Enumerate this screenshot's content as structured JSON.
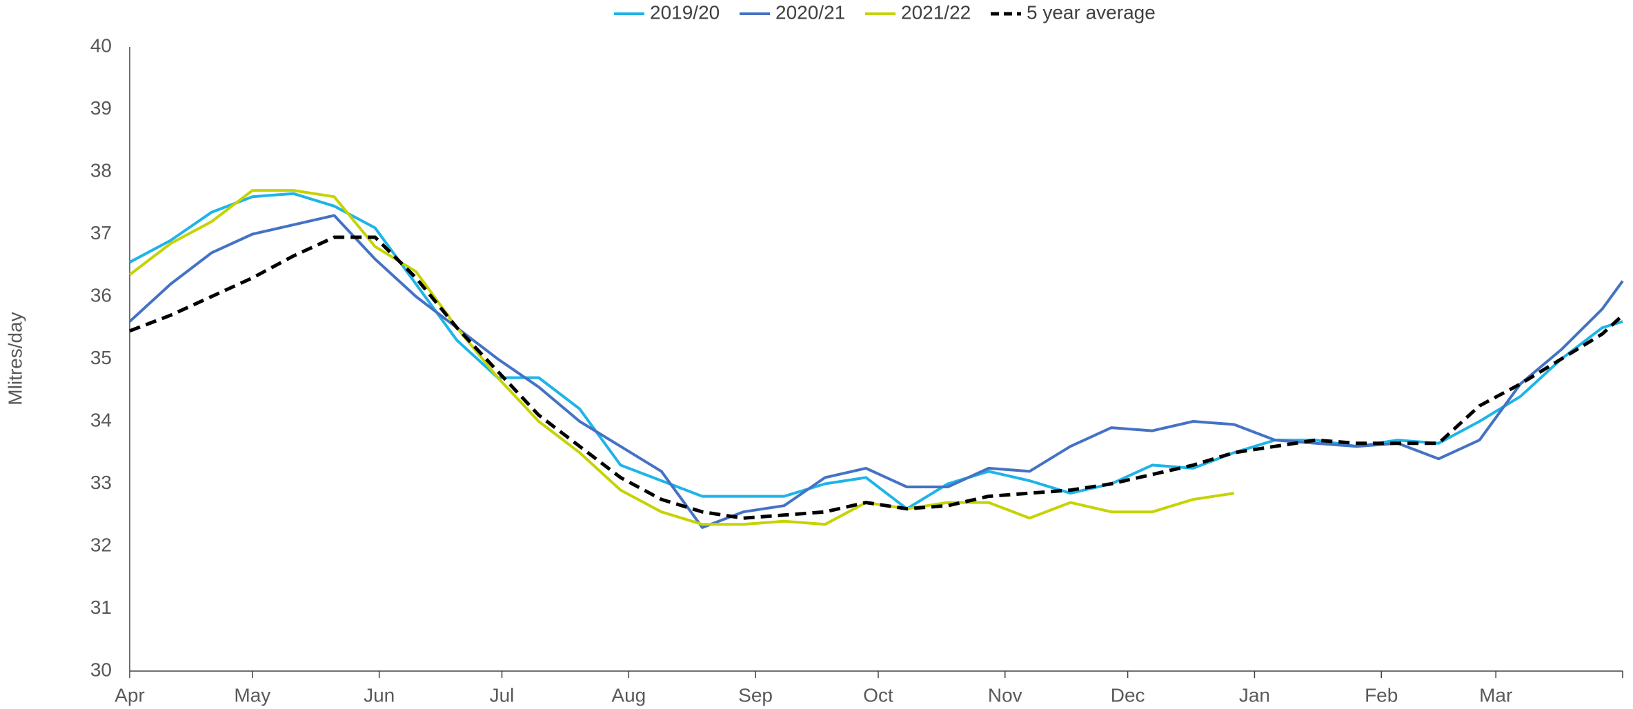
{
  "chart_data": {
    "type": "line",
    "ylabel": "Mlitres/day",
    "x": [
      0,
      10,
      20,
      30,
      40,
      50,
      60,
      70,
      80,
      90,
      100,
      110,
      120,
      130,
      140,
      150,
      160,
      170,
      180,
      190,
      200,
      210,
      220,
      230,
      240,
      250,
      260,
      270,
      280,
      290,
      300,
      310,
      320,
      330,
      340,
      350,
      360,
      365
    ],
    "xlim": [
      0,
      365
    ],
    "xticks": [
      {
        "value": 0,
        "label": "Apr"
      },
      {
        "value": 30,
        "label": "May"
      },
      {
        "value": 61,
        "label": "Jun"
      },
      {
        "value": 91,
        "label": "Jul"
      },
      {
        "value": 122,
        "label": "Aug"
      },
      {
        "value": 153,
        "label": "Sep"
      },
      {
        "value": 183,
        "label": "Oct"
      },
      {
        "value": 214,
        "label": "Nov"
      },
      {
        "value": 244,
        "label": "Dec"
      },
      {
        "value": 275,
        "label": "Jan"
      },
      {
        "value": 306,
        "label": "Feb"
      },
      {
        "value": 334,
        "label": "Mar"
      }
    ],
    "ylim": [
      30,
      40
    ],
    "yticks": [
      30,
      31,
      32,
      33,
      34,
      35,
      36,
      37,
      38,
      39,
      40
    ],
    "grid": false,
    "legend": "top",
    "series": [
      {
        "name": "2019/20",
        "color": "#1eb4e8",
        "dashed": false,
        "values": [
          36.55,
          36.9,
          37.35,
          37.6,
          37.65,
          37.45,
          37.1,
          36.2,
          35.3,
          34.7,
          34.7,
          34.2,
          33.3,
          33.05,
          32.8,
          32.8,
          32.8,
          33.0,
          33.1,
          32.6,
          33.0,
          33.2,
          33.05,
          32.85,
          33.0,
          33.3,
          33.25,
          33.5,
          33.7,
          33.7,
          33.6,
          33.7,
          33.65,
          34.0,
          34.4,
          35.0,
          35.5,
          35.6
        ]
      },
      {
        "name": "2020/21",
        "color": "#4472c4",
        "dashed": false,
        "values": [
          35.6,
          36.2,
          36.7,
          37.0,
          37.15,
          37.3,
          36.6,
          36.0,
          35.5,
          35.0,
          34.55,
          34.0,
          33.6,
          33.2,
          32.3,
          32.55,
          32.65,
          33.1,
          33.25,
          32.95,
          32.95,
          33.25,
          33.2,
          33.6,
          33.9,
          33.85,
          34.0,
          33.95,
          33.7,
          33.65,
          33.6,
          33.65,
          33.4,
          33.7,
          34.6,
          35.15,
          35.8,
          36.25
        ]
      },
      {
        "name": "2021/22",
        "color": "#c5d300",
        "dashed": false,
        "values": [
          36.35,
          36.85,
          37.2,
          37.7,
          37.7,
          37.6,
          36.8,
          36.4,
          35.5,
          34.7,
          34.0,
          33.5,
          32.9,
          32.55,
          32.35,
          32.35,
          32.4,
          32.35,
          32.7,
          32.6,
          32.7,
          32.7,
          32.45,
          32.7,
          32.55,
          32.55,
          32.75,
          32.85,
          null,
          null,
          null,
          null,
          null,
          null,
          null,
          null,
          null,
          null
        ]
      },
      {
        "name": "5 year average",
        "color": "#000000",
        "dashed": true,
        "values": [
          35.45,
          35.7,
          36.0,
          36.3,
          36.65,
          36.95,
          36.95,
          36.3,
          35.5,
          34.8,
          34.1,
          33.6,
          33.1,
          32.75,
          32.55,
          32.45,
          32.5,
          32.55,
          32.7,
          32.6,
          32.65,
          32.8,
          32.85,
          32.9,
          33.0,
          33.15,
          33.3,
          33.5,
          33.6,
          33.7,
          33.65,
          33.65,
          33.65,
          34.25,
          34.6,
          35.0,
          35.4,
          35.7
        ]
      }
    ]
  }
}
